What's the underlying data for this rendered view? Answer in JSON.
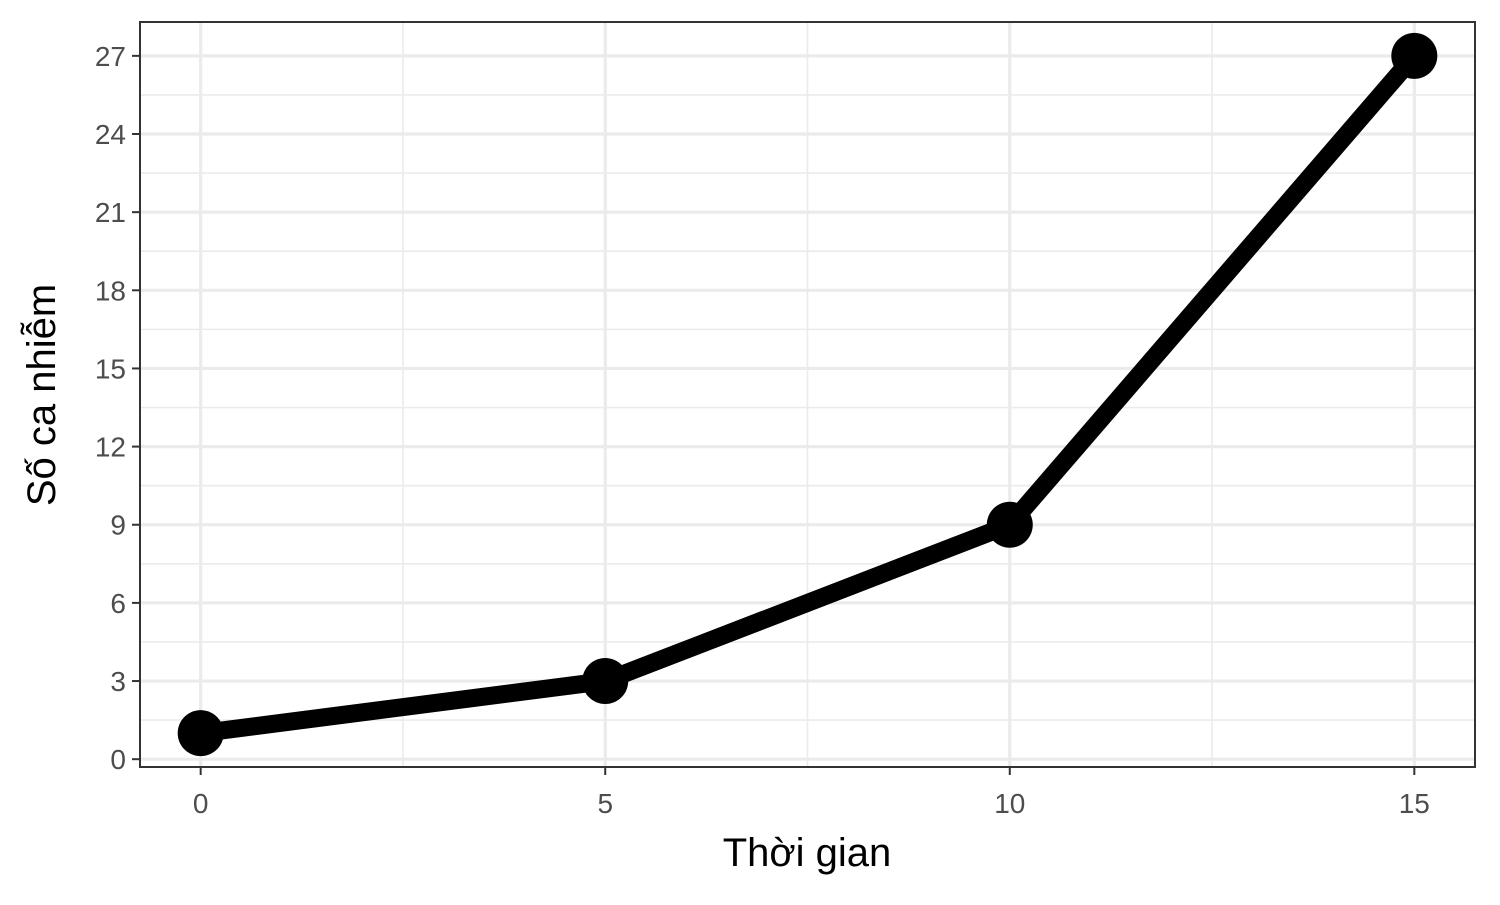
{
  "chart_data": {
    "type": "line",
    "title": "",
    "xlabel": "Thời gian",
    "ylabel": "Số ca nhiễm",
    "x": [
      0,
      5,
      10,
      15
    ],
    "series": [
      {
        "values": [
          1,
          3,
          9,
          27
        ]
      }
    ],
    "xlim": [
      -0.75,
      15.75
    ],
    "ylim": [
      -0.3,
      28.3
    ],
    "x_ticks": [
      0,
      5,
      10,
      15
    ],
    "x_minor_ticks": [
      2.5,
      7.5,
      12.5
    ],
    "y_ticks": [
      0,
      3,
      6,
      9,
      12,
      15,
      18,
      21,
      24,
      27
    ],
    "y_minor_ticks": [
      1.5,
      4.5,
      7.5,
      10.5,
      13.5,
      16.5,
      19.5,
      22.5,
      25.5
    ],
    "grid": true,
    "legend": "none",
    "colors": {
      "line": "#000000",
      "grid": "#ebebeb",
      "panel_border": "#333333",
      "tick_label": "#4d4d4d"
    }
  }
}
